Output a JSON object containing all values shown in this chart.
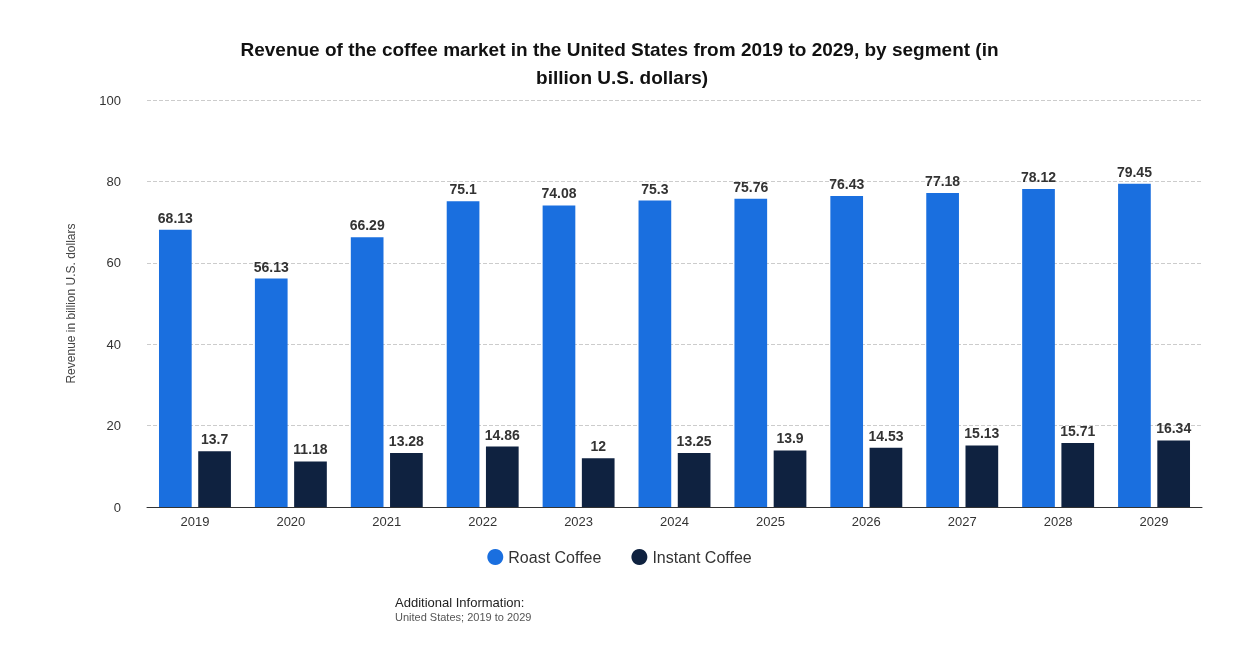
{
  "chart_data": {
    "type": "bar",
    "title": "Revenue of the coffee market in the United States from 2019 to 2029, by segment (in billion U.S. dollars)",
    "ylabel": "Revenue in billion U.S. dollars",
    "categories": [
      "2019",
      "2020",
      "2021",
      "2022",
      "2023",
      "2024",
      "2025",
      "2026",
      "2027",
      "2028",
      "2029"
    ],
    "series": [
      {
        "name": "Roast Coffee",
        "color": "#1a6fdf",
        "values": [
          68.13,
          56.13,
          66.29,
          75.1,
          74.08,
          75.3,
          75.76,
          76.43,
          77.18,
          78.12,
          79.45
        ]
      },
      {
        "name": "Instant Coffee",
        "color": "#0f2240",
        "values": [
          13.7,
          11.18,
          13.28,
          14.86,
          12,
          13.25,
          13.9,
          14.53,
          15.13,
          15.71,
          16.34
        ]
      }
    ],
    "ylim": [
      0,
      100
    ],
    "yticks": [
      0,
      20,
      40,
      60,
      80,
      100
    ],
    "grid": "y",
    "legend": "bottom",
    "data_labels": true,
    "annotations": [
      "Additional Information:",
      "United States; 2019 to 2029"
    ]
  }
}
